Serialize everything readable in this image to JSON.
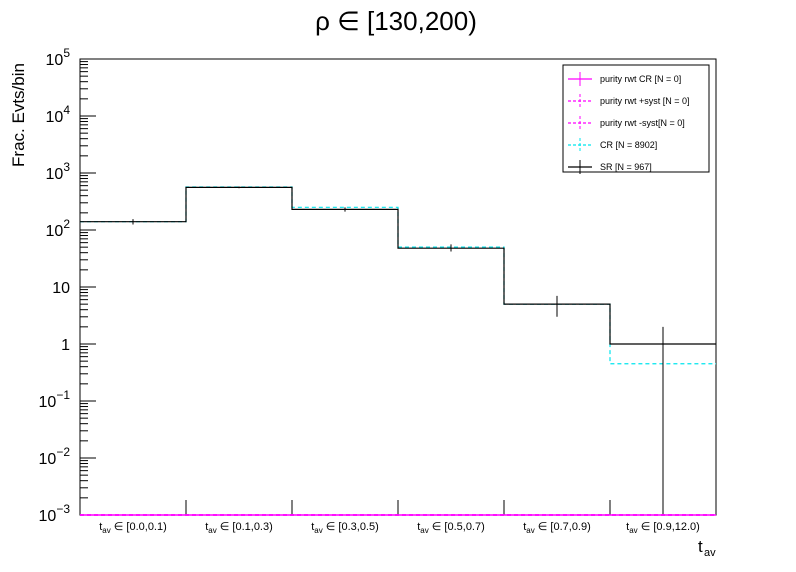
{
  "chart_data": {
    "type": "bar",
    "title": "ρ ∈ [130,200)",
    "ylabel": "Frac. Evts/bin",
    "xlabel": "t_av",
    "y_scale": "log",
    "ylim": [
      0.001,
      100000
    ],
    "y_ticks": [
      {
        "value": 0.001,
        "base": "10",
        "exp": "−3"
      },
      {
        "value": 0.01,
        "base": "10",
        "exp": "−2"
      },
      {
        "value": 0.1,
        "base": "10",
        "exp": "−1"
      },
      {
        "value": 1,
        "base": "1",
        "exp": ""
      },
      {
        "value": 10,
        "base": "10",
        "exp": ""
      },
      {
        "value": 100,
        "base": "10",
        "exp": "2"
      },
      {
        "value": 1000,
        "base": "10",
        "exp": "3"
      },
      {
        "value": 10000,
        "base": "10",
        "exp": "4"
      },
      {
        "value": 100000,
        "base": "10",
        "exp": "5"
      }
    ],
    "categories": [
      {
        "sub": "av",
        "range": "∈ [0.0,0.1)"
      },
      {
        "sub": "av",
        "range": "∈ [0.1,0.3)"
      },
      {
        "sub": "av",
        "range": "∈ [0.3,0.5)"
      },
      {
        "sub": "av",
        "range": "∈ [0.5,0.7)"
      },
      {
        "sub": "av",
        "range": "∈ [0.7,0.9)"
      },
      {
        "sub": "av",
        "range": "∈ [0.9,12.0)"
      }
    ],
    "series": [
      {
        "name": "purity rwt CR [N = 0]",
        "color": "#ff00ff",
        "style": "solid",
        "values": [
          0,
          0,
          0,
          0,
          0,
          0
        ]
      },
      {
        "name": "purity rwt +syst [N = 0]",
        "color": "#ff00ff",
        "style": "dashed",
        "values": [
          0,
          0,
          0,
          0,
          0,
          0
        ]
      },
      {
        "name": "purity rwt -syst[N = 0]",
        "color": "#ff00ff",
        "style": "dashed",
        "values": [
          0,
          0,
          0,
          0,
          0,
          0
        ]
      },
      {
        "name": "CR [N = 8902]",
        "color": "#00e5ee",
        "style": "dashed",
        "values": [
          140,
          570,
          250,
          50,
          5,
          0.45
        ],
        "errors": [
          [
            0,
            0
          ],
          [
            0,
            0
          ],
          [
            0,
            0
          ],
          [
            0,
            0
          ],
          [
            0,
            0
          ],
          [
            0.2,
            0.9
          ]
        ]
      },
      {
        "name": "SR [N = 967]",
        "color": "#000000",
        "style": "solid",
        "values": [
          140,
          560,
          230,
          48,
          5,
          1
        ],
        "errors": [
          [
            125,
            155
          ],
          [
            540,
            580
          ],
          [
            210,
            250
          ],
          [
            42,
            56
          ],
          [
            3,
            7
          ],
          [
            0.001,
            2
          ]
        ]
      }
    ],
    "legend_position": "top-right"
  }
}
